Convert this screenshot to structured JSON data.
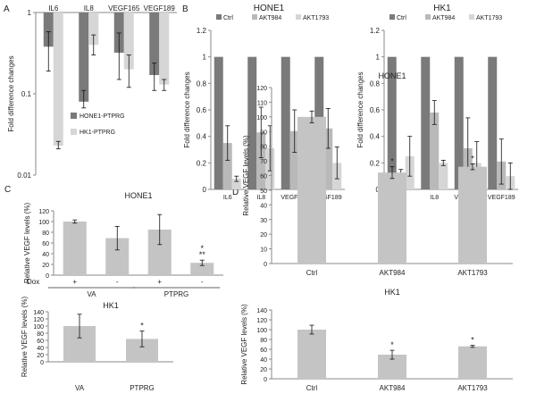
{
  "panel_labels": [
    "A",
    "B",
    "C",
    "D"
  ],
  "colors": {
    "dark": "#7a7a7a",
    "medium": "#b9b9b9",
    "light": "#d6d6d6",
    "axis": "#8a8a8a",
    "text": "#222222"
  },
  "chart_data": [
    {
      "panel": "A",
      "type": "bar",
      "scale": "log",
      "categories": [
        "IL6",
        "IL8",
        "VEGF165",
        "VEGF189"
      ],
      "ylabel": "Fold difference changes",
      "ylim": [
        0.01,
        1
      ],
      "yticks": [
        "1",
        "0.1",
        "0.01"
      ],
      "series": [
        {
          "name": "HONE1-PTPRG",
          "values": [
            0.38,
            0.08,
            0.32,
            0.17
          ],
          "err_low": [
            0.19,
            0.067,
            0.15,
            0.11
          ],
          "err_high": [
            0.58,
            0.11,
            0.56,
            0.24
          ],
          "color": "#7a7a7a"
        },
        {
          "name": "HK1-PTPRG",
          "values": [
            0.023,
            0.4,
            0.2,
            0.13
          ],
          "err_low": [
            0.021,
            0.3,
            0.12,
            0.11
          ],
          "err_high": [
            0.026,
            0.53,
            0.3,
            0.15
          ],
          "color": "#d6d6d6"
        }
      ],
      "legend_position": "bottom-right"
    },
    {
      "panel": "B",
      "title": "HONE1",
      "type": "bar",
      "categories": [
        "IL6",
        "IL8",
        "VEGF165",
        "VEGF189"
      ],
      "ylabel": "Fold difference changes",
      "ylim": [
        0,
        1.2
      ],
      "yticks": [
        "0",
        "0.2",
        "0.4",
        "0.6",
        "0.8",
        "1",
        "1.2"
      ],
      "series": [
        {
          "name": "Ctrl",
          "values": [
            1,
            1,
            1,
            1
          ],
          "errors": [
            0,
            0,
            0,
            0
          ],
          "color": "#7a7a7a"
        },
        {
          "name": "AKT984",
          "values": [
            0.35,
            0.43,
            0.44,
            0.46
          ],
          "errors": [
            0.13,
            0.19,
            0.16,
            0.15
          ],
          "color": "#b9b9b9"
        },
        {
          "name": "AKT1793",
          "values": [
            0.08,
            0.31,
            0.22,
            0.2
          ],
          "errors": [
            0.02,
            0.17,
            0.13,
            0.12
          ],
          "color": "#d6d6d6"
        }
      ],
      "legend_position": "top"
    },
    {
      "panel": "B",
      "title": "HK1",
      "type": "bar",
      "categories": [
        "IL6",
        "IL8",
        "VEGF165",
        "VEGF189"
      ],
      "ylabel": "Fold difference changes",
      "ylim": [
        0,
        1.2
      ],
      "yticks": [
        "0",
        "0.2",
        "0.4",
        "0.6",
        "0.8",
        "1",
        "1.2"
      ],
      "series": [
        {
          "name": "Ctrl",
          "values": [
            1,
            1,
            1,
            1
          ],
          "errors": [
            0,
            0,
            0,
            0
          ],
          "color": "#7a7a7a"
        },
        {
          "name": "AKT984",
          "values": [
            0.1,
            0.58,
            0.31,
            0.21
          ],
          "errors": [
            0.05,
            0.09,
            0.23,
            0.17
          ],
          "color": "#b9b9b9"
        },
        {
          "name": "AKT1793",
          "values": [
            0.25,
            0.2,
            0.2,
            0.1
          ],
          "errors": [
            0.15,
            0.02,
            0.16,
            0.1
          ],
          "color": "#d6d6d6"
        }
      ],
      "legend_position": "top"
    },
    {
      "panel": "C",
      "title": "HONE1",
      "type": "bar",
      "categories": [
        "+",
        "-",
        "+",
        "-"
      ],
      "ylabel": "Relative VEGF levels (%)",
      "ylim": [
        0,
        120
      ],
      "yticks": [
        "0",
        "20",
        "40",
        "60",
        "80",
        "100",
        "120"
      ],
      "values": [
        100,
        69,
        85,
        23
      ],
      "errors": [
        3,
        22,
        28,
        5
      ],
      "annotations": [
        {
          "index": 3,
          "lines": [
            "*",
            "**"
          ]
        }
      ],
      "dox_label": "Dox",
      "groups": [
        {
          "label": "VA",
          "span": [
            0,
            1
          ]
        },
        {
          "label": "PTPRG",
          "span": [
            2,
            3
          ]
        }
      ],
      "color": "#c4c4c4"
    },
    {
      "panel": "C",
      "title": "HK1",
      "type": "bar",
      "categories": [
        "VA",
        "PTPRG"
      ],
      "ylabel": "Relative VEGF levels (%)",
      "ylim": [
        0,
        140
      ],
      "yticks": [
        "0",
        "20",
        "40",
        "60",
        "80",
        "100",
        "120",
        "140"
      ],
      "values": [
        100,
        64
      ],
      "errors": [
        33,
        22
      ],
      "annotations": [
        {
          "index": 1,
          "lines": [
            "*"
          ]
        }
      ],
      "color": "#c4c4c4"
    },
    {
      "panel": "D",
      "title": "HONE1",
      "type": "bar",
      "categories": [
        "Ctrl",
        "AKT984",
        "AKT1793"
      ],
      "ylabel": "Relative VEGF levels (%)",
      "ylim": [
        0,
        120
      ],
      "yticks": [
        "0",
        "10",
        "20",
        "30",
        "40",
        "50",
        "60",
        "70",
        "80",
        "90",
        "100",
        "110",
        "120"
      ],
      "values": [
        100,
        62,
        66
      ],
      "errors": [
        4,
        4,
        2
      ],
      "annotations": [
        {
          "index": 1,
          "lines": [
            "*"
          ]
        },
        {
          "index": 2,
          "lines": [
            "*"
          ]
        }
      ],
      "color": "#c4c4c4"
    },
    {
      "panel": "D",
      "title": "HK1",
      "type": "bar",
      "categories": [
        "Ctrl",
        "AKT984",
        "AKT1793"
      ],
      "ylabel": "Relative VEGF levels (%)",
      "ylim": [
        0,
        140
      ],
      "yticks": [
        "0",
        "20",
        "40",
        "60",
        "80",
        "100",
        "120",
        "140"
      ],
      "values": [
        100,
        49,
        66
      ],
      "errors": [
        9,
        9,
        2
      ],
      "annotations": [
        {
          "index": 1,
          "lines": [
            "*"
          ]
        },
        {
          "index": 2,
          "lines": [
            "*"
          ]
        }
      ],
      "color": "#c4c4c4"
    }
  ]
}
